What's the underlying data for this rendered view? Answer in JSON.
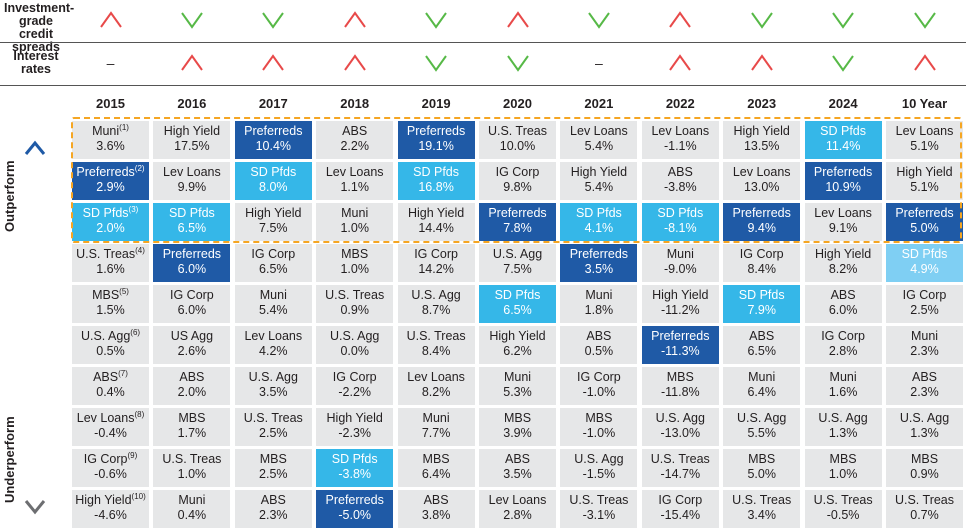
{
  "rows_top": [
    {
      "label_lines": [
        "Investment-",
        "grade credit",
        "spreads"
      ],
      "symbols": [
        "up",
        "down",
        "down",
        "up",
        "down",
        "up",
        "down",
        "up",
        "down",
        "down",
        "down"
      ]
    },
    {
      "label_lines": [
        "Interest",
        "rates"
      ],
      "symbols": [
        "dash",
        "up",
        "up",
        "up",
        "down",
        "down",
        "dash",
        "up",
        "up",
        "down",
        "up"
      ]
    }
  ],
  "colors": {
    "up": "#e84a4a",
    "down": "#57b947",
    "preferreds": "#1f5aa6",
    "sd_pfds": "#35b7e8",
    "cell": "#e6e7e8",
    "highlight": "#f5a623"
  },
  "axis": {
    "top": "Outperform",
    "bottom": "Underperform"
  },
  "chart_data": {
    "type": "table",
    "columns": [
      "2015",
      "2016",
      "2017",
      "2018",
      "2019",
      "2020",
      "2021",
      "2022",
      "2023",
      "2024",
      "10 Year"
    ],
    "cells": [
      [
        {
          "name": "Muni",
          "sup": "(1)",
          "value": "3.6%"
        },
        {
          "name": "Preferreds",
          "sup": "(2)",
          "value": "2.9%"
        },
        {
          "name": "SD Pfds",
          "sup": "(3)",
          "value": "2.0%"
        },
        {
          "name": "U.S. Treas",
          "sup": "(4)",
          "value": "1.6%"
        },
        {
          "name": "MBS",
          "sup": "(5)",
          "value": "1.5%"
        },
        {
          "name": "U.S. Agg",
          "sup": "(6)",
          "value": "0.5%"
        },
        {
          "name": "ABS",
          "sup": "(7)",
          "value": "0.4%"
        },
        {
          "name": "Lev Loans",
          "sup": "(8)",
          "value": "-0.4%"
        },
        {
          "name": "IG Corp",
          "sup": "(9)",
          "value": "-0.6%"
        },
        {
          "name": "High Yield",
          "sup": "(10)",
          "value": "-4.6%"
        }
      ],
      [
        {
          "name": "High Yield",
          "value": "17.5%"
        },
        {
          "name": "Lev Loans",
          "value": "9.9%"
        },
        {
          "name": "SD Pfds",
          "value": "6.5%"
        },
        {
          "name": "Preferreds",
          "value": "6.0%"
        },
        {
          "name": "IG Corp",
          "value": "6.0%"
        },
        {
          "name": "US Agg",
          "value": "2.6%"
        },
        {
          "name": "ABS",
          "value": "2.0%"
        },
        {
          "name": "MBS",
          "value": "1.7%"
        },
        {
          "name": "U.S. Treas",
          "value": "1.0%"
        },
        {
          "name": "Muni",
          "value": "0.4%"
        }
      ],
      [
        {
          "name": "Preferreds",
          "value": "10.4%"
        },
        {
          "name": "SD Pfds",
          "value": "8.0%"
        },
        {
          "name": "High Yield",
          "value": "7.5%"
        },
        {
          "name": "IG Corp",
          "value": "6.5%"
        },
        {
          "name": "Muni",
          "value": "5.4%"
        },
        {
          "name": "Lev Loans",
          "value": "4.2%"
        },
        {
          "name": "U.S. Agg",
          "value": "3.5%"
        },
        {
          "name": "U.S. Treas",
          "value": "2.5%"
        },
        {
          "name": "MBS",
          "value": "2.5%"
        },
        {
          "name": "ABS",
          "value": "2.3%"
        }
      ],
      [
        {
          "name": "ABS",
          "value": "2.2%"
        },
        {
          "name": "Lev Loans",
          "value": "1.1%"
        },
        {
          "name": "Muni",
          "value": "1.0%"
        },
        {
          "name": "MBS",
          "value": "1.0%"
        },
        {
          "name": "U.S. Treas",
          "value": "0.9%"
        },
        {
          "name": "U.S. Agg",
          "value": "0.0%"
        },
        {
          "name": "IG Corp",
          "value": "-2.2%"
        },
        {
          "name": "High Yield",
          "value": "-2.3%"
        },
        {
          "name": "SD Pfds",
          "value": "-3.8%"
        },
        {
          "name": "Preferreds",
          "value": "-5.0%"
        }
      ],
      [
        {
          "name": "Preferreds",
          "value": "19.1%"
        },
        {
          "name": "SD Pfds",
          "value": "16.8%"
        },
        {
          "name": "High Yield",
          "value": "14.4%"
        },
        {
          "name": "IG Corp",
          "value": "14.2%"
        },
        {
          "name": "U.S. Agg",
          "value": "8.7%"
        },
        {
          "name": "U.S. Treas",
          "value": "8.4%"
        },
        {
          "name": "Lev Loans",
          "value": "8.2%"
        },
        {
          "name": "Muni",
          "value": "7.7%"
        },
        {
          "name": "MBS",
          "value": "6.4%"
        },
        {
          "name": "ABS",
          "value": "3.8%"
        }
      ],
      [
        {
          "name": "U.S. Treas",
          "value": "10.0%"
        },
        {
          "name": "IG Corp",
          "value": "9.8%"
        },
        {
          "name": "Preferreds",
          "value": "7.8%"
        },
        {
          "name": "U.S. Agg",
          "value": "7.5%"
        },
        {
          "name": "SD Pfds",
          "value": "6.5%"
        },
        {
          "name": "High Yield",
          "value": "6.2%"
        },
        {
          "name": "Muni",
          "value": "5.3%"
        },
        {
          "name": "MBS",
          "value": "3.9%"
        },
        {
          "name": "ABS",
          "value": "3.5%"
        },
        {
          "name": "Lev Loans",
          "value": "2.8%"
        }
      ],
      [
        {
          "name": "Lev Loans",
          "value": "5.4%"
        },
        {
          "name": "High Yield",
          "value": "5.4%"
        },
        {
          "name": "SD Pfds",
          "value": "4.1%"
        },
        {
          "name": "Preferreds",
          "value": "3.5%"
        },
        {
          "name": "Muni",
          "value": "1.8%"
        },
        {
          "name": "ABS",
          "value": "0.5%"
        },
        {
          "name": "IG Corp",
          "value": "-1.0%"
        },
        {
          "name": "MBS",
          "value": "-1.0%"
        },
        {
          "name": "U.S. Agg",
          "value": "-1.5%"
        },
        {
          "name": "U.S. Treas",
          "value": "-3.1%"
        }
      ],
      [
        {
          "name": "Lev Loans",
          "value": "-1.1%"
        },
        {
          "name": "ABS",
          "value": "-3.8%"
        },
        {
          "name": "SD Pfds",
          "value": "-8.1%"
        },
        {
          "name": "Muni",
          "value": "-9.0%"
        },
        {
          "name": "High Yield",
          "value": "-11.2%"
        },
        {
          "name": "Preferreds",
          "value": "-11.3%"
        },
        {
          "name": "MBS",
          "value": "-11.8%"
        },
        {
          "name": "U.S. Agg",
          "value": "-13.0%"
        },
        {
          "name": "U.S. Treas",
          "value": "-14.7%"
        },
        {
          "name": "IG Corp",
          "value": "-15.4%"
        }
      ],
      [
        {
          "name": "High Yield",
          "value": "13.5%"
        },
        {
          "name": "Lev Loans",
          "value": "13.0%"
        },
        {
          "name": "Preferreds",
          "value": "9.4%"
        },
        {
          "name": "IG Corp",
          "value": "8.4%"
        },
        {
          "name": "SD Pfds",
          "value": "7.9%"
        },
        {
          "name": "ABS",
          "value": "6.5%"
        },
        {
          "name": "Muni",
          "value": "6.4%"
        },
        {
          "name": "U.S. Agg",
          "value": "5.5%"
        },
        {
          "name": "MBS",
          "value": "5.0%"
        },
        {
          "name": "U.S. Treas",
          "value": "3.4%"
        }
      ],
      [
        {
          "name": "SD Pfds",
          "value": "11.4%"
        },
        {
          "name": "Preferreds",
          "value": "10.9%"
        },
        {
          "name": "Lev Loans",
          "value": "9.1%"
        },
        {
          "name": "High Yield",
          "value": "8.2%"
        },
        {
          "name": "ABS",
          "value": "6.0%"
        },
        {
          "name": "IG Corp",
          "value": "2.8%"
        },
        {
          "name": "Muni",
          "value": "1.6%"
        },
        {
          "name": "U.S. Agg",
          "value": "1.3%"
        },
        {
          "name": "MBS",
          "value": "1.0%"
        },
        {
          "name": "U.S. Treas",
          "value": "-0.5%"
        }
      ],
      [
        {
          "name": "Lev Loans",
          "value": "5.1%"
        },
        {
          "name": "High Yield",
          "value": "5.1%"
        },
        {
          "name": "Preferreds",
          "value": "5.0%"
        },
        {
          "name": "SD Pfds",
          "value": "4.9%"
        },
        {
          "name": "IG Corp",
          "value": "2.5%"
        },
        {
          "name": "Muni",
          "value": "2.3%"
        },
        {
          "name": "ABS",
          "value": "2.3%"
        },
        {
          "name": "U.S. Agg",
          "value": "1.3%"
        },
        {
          "name": "MBS",
          "value": "0.9%"
        },
        {
          "name": "U.S. Treas",
          "value": "0.7%"
        }
      ]
    ]
  }
}
